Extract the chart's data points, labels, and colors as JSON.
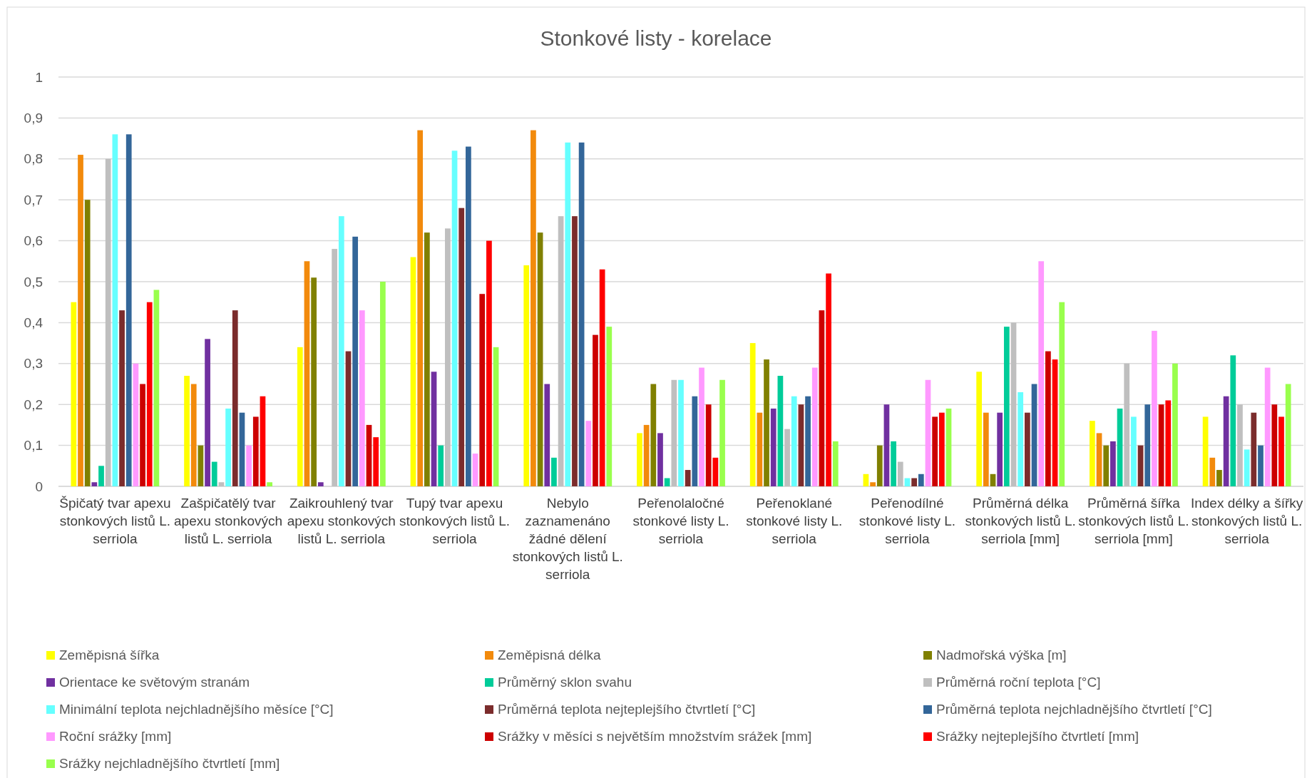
{
  "chart_data": {
    "type": "bar",
    "title": "Stonkové listy - korelace",
    "categories": [
      "Špičatý tvar apexu stonkových listů L. serriola",
      "Zašpičatělý tvar apexu stonkových listů L. serriola",
      "Zaikrouhlený tvar apexu stonkových listů L. serriola",
      "Tupý tvar apexu stonkových listů L. serriola",
      "Nebylo zaznamenáno žádné dělení stonkových listů L. serriola",
      "Peřenolaločné stonkové listy L. serriola",
      "Peřenoklané stonkové listy L. serriola",
      "Peřenodílné stonkové listy L. serriola",
      "Průměrná délka stonkových listů L. serriola [mm]",
      "Průměrná šířka stonkových listů L. serriola [mm]",
      "Index délky a šířky stonkových listů L. serriola"
    ],
    "series": [
      {
        "name": "Zeměpisná šířka",
        "color": "#ffff00",
        "values": [
          0.45,
          0.27,
          0.34,
          0.56,
          0.54,
          0.13,
          0.35,
          0.03,
          0.28,
          0.16,
          0.17
        ]
      },
      {
        "name": "Zeměpisná délka",
        "color": "#f28a0c",
        "values": [
          0.81,
          0.25,
          0.55,
          0.87,
          0.87,
          0.15,
          0.18,
          0.01,
          0.18,
          0.13,
          0.07
        ]
      },
      {
        "name": "Nadmořská výška [m]",
        "color": "#808000",
        "values": [
          0.7,
          0.1,
          0.51,
          0.62,
          0.62,
          0.25,
          0.31,
          0.1,
          0.03,
          0.1,
          0.04
        ]
      },
      {
        "name": "Orientace ke světovým stranám",
        "color": "#7030a0",
        "values": [
          0.01,
          0.36,
          0.01,
          0.28,
          0.25,
          0.13,
          0.19,
          0.2,
          0.18,
          0.11,
          0.22
        ]
      },
      {
        "name": "Průměrný sklon svahu",
        "color": "#00cc99",
        "values": [
          0.05,
          0.06,
          0,
          0.1,
          0.07,
          0.02,
          0.27,
          0.11,
          0.39,
          0.19,
          0.32
        ]
      },
      {
        "name": "Průměrná roční teplota [°C]",
        "color": "#bfbfbf",
        "values": [
          0.8,
          0.01,
          0.58,
          0.63,
          0.66,
          0.26,
          0.14,
          0.06,
          0.4,
          0.3,
          0.2
        ]
      },
      {
        "name": "Minimální teplota nejchladnějšího měsíce [°C]",
        "color": "#66ffff",
        "values": [
          0.86,
          0.19,
          0.66,
          0.82,
          0.84,
          0.26,
          0.22,
          0.02,
          0.23,
          0.17,
          0.09
        ]
      },
      {
        "name": "Průměrná teplota nejteplejšího čtvrtletí [°C]",
        "color": "#7b2c2c",
        "values": [
          0.43,
          0.43,
          0.33,
          0.68,
          0.66,
          0.04,
          0.2,
          0.02,
          0.18,
          0.1,
          0.18
        ]
      },
      {
        "name": "Průměrná teplota nejchladnějšího čtvrtletí [°C]",
        "color": "#336699",
        "values": [
          0.86,
          0.18,
          0.61,
          0.83,
          0.84,
          0.22,
          0.22,
          0.03,
          0.25,
          0.2,
          0.1
        ]
      },
      {
        "name": "Roční srážky [mm]",
        "color": "#ff99ff",
        "values": [
          0.3,
          0.1,
          0.43,
          0.08,
          0.16,
          0.29,
          0.29,
          0.26,
          0.55,
          0.38,
          0.29
        ]
      },
      {
        "name": "Srážky v měsíci s největším množstvím srážek [mm]",
        "color": "#cc0000",
        "values": [
          0.25,
          0.17,
          0.15,
          0.47,
          0.37,
          0.2,
          0.43,
          0.17,
          0.33,
          0.2,
          0.2
        ]
      },
      {
        "name": "Srážky nejteplejšího čtvrtletí [mm]",
        "color": "#ff0000",
        "values": [
          0.45,
          0.22,
          0.12,
          0.6,
          0.53,
          0.07,
          0.52,
          0.18,
          0.31,
          0.21,
          0.17
        ]
      },
      {
        "name": "Srážky nejchladnějšího čtvrtletí [mm]",
        "color": "#99ff4d",
        "values": [
          0.48,
          0.01,
          0.5,
          0.34,
          0.39,
          0.26,
          0.11,
          0.19,
          0.45,
          0.3,
          0.25
        ]
      }
    ],
    "ylim": [
      0,
      1
    ],
    "yticks": [
      0,
      {
        "value": 0.1,
        "label": "0,1"
      },
      {
        "value": 0.2,
        "label": "0,2"
      },
      {
        "value": 0.3,
        "label": "0,3"
      },
      {
        "value": 0.4,
        "label": "0,4"
      },
      {
        "value": 0.5,
        "label": "0,5"
      },
      {
        "value": 0.6,
        "label": "0,6"
      },
      {
        "value": 0.7,
        "label": "0,7"
      },
      {
        "value": 0.8,
        "label": "0,8"
      },
      {
        "value": 0.9,
        "label": "0,9"
      },
      1
    ],
    "grid": "y",
    "legend": "bottom"
  }
}
